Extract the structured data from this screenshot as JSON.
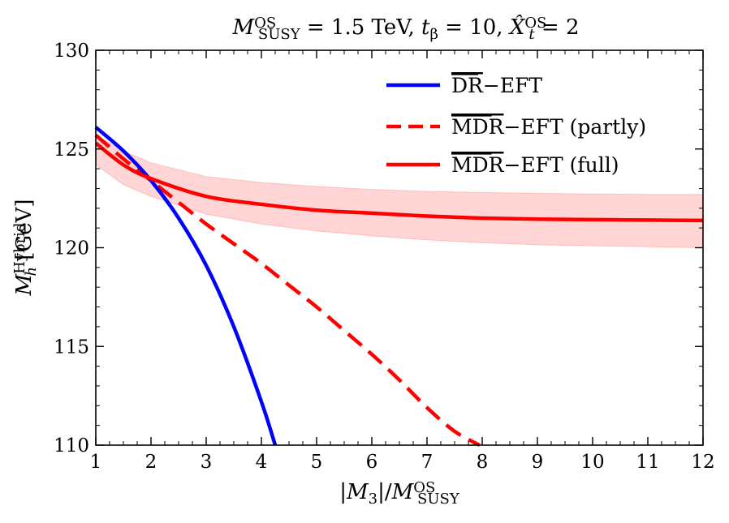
{
  "chart_data": {
    "type": "line",
    "title": {
      "parts": [
        {
          "t": "M",
          "i": true
        },
        {
          "t": "OS",
          "sup": true
        },
        {
          "t": "SUSY",
          "sub": true
        },
        {
          "t": " = 1.5 TeV,  "
        },
        {
          "t": "t",
          "i": true
        },
        {
          "t": "β",
          "sub": true
        },
        {
          "t": " = 10,  "
        },
        {
          "t": "X̂",
          "i": true
        },
        {
          "t": "OS",
          "sup": true
        },
        {
          "t": "t",
          "sub": true,
          "i": true
        },
        {
          "t": " = 2"
        }
      ]
    },
    "xlabel": {
      "parts": [
        {
          "t": "|"
        },
        {
          "t": "M",
          "i": true
        },
        {
          "t": "3",
          "sub": true
        },
        {
          "t": "|/"
        },
        {
          "t": "M",
          "i": true
        },
        {
          "t": "OS",
          "sup": true
        },
        {
          "t": "SUSY",
          "sub": true
        }
      ]
    },
    "ylabel": {
      "parts": [
        {
          "t": "M",
          "i": true
        },
        {
          "t": "Hybrid",
          "sup": true
        },
        {
          "t": "h",
          "sub": true,
          "i": true
        },
        {
          "t": " [GeV]"
        }
      ]
    },
    "xlim": [
      1,
      12
    ],
    "ylim": [
      110,
      130
    ],
    "xticks": [
      1,
      2,
      3,
      4,
      5,
      6,
      7,
      8,
      9,
      10,
      11,
      12
    ],
    "yticks": [
      110,
      115,
      120,
      125,
      130
    ],
    "legend_position": "top-right",
    "series": [
      {
        "name": "DR−EFT",
        "name_overline": "DR",
        "name_rest": "−EFT",
        "color": "#0000ff",
        "style": "solid",
        "x": [
          1.0,
          1.5,
          2.0,
          2.5,
          3.0,
          3.5,
          4.0,
          4.25
        ],
        "y": [
          126.1,
          124.9,
          123.4,
          121.5,
          119.1,
          116.0,
          112.2,
          110.0
        ]
      },
      {
        "name": "MDR−EFT (partly)",
        "name_overline": "MDR",
        "name_rest": "−EFT (partly)",
        "color": "#ff0000",
        "style": "dashed",
        "x": [
          1.0,
          1.5,
          2.0,
          2.5,
          3.0,
          3.5,
          4.0,
          4.5,
          5.0,
          5.5,
          6.0,
          6.5,
          7.0,
          7.5,
          7.95
        ],
        "y": [
          125.7,
          124.5,
          123.4,
          122.3,
          121.2,
          120.2,
          119.2,
          118.1,
          117.0,
          115.8,
          114.6,
          113.3,
          111.9,
          110.7,
          110.0
        ]
      },
      {
        "name": "MDR−EFT (full)",
        "name_overline": "MDR",
        "name_rest": "−EFT (full)",
        "color": "#ff0000",
        "style": "solid",
        "x": [
          1.0,
          1.5,
          2.0,
          3.0,
          4.0,
          5.0,
          6.0,
          7.0,
          8.0,
          9.0,
          10.0,
          11.0,
          12.0
        ],
        "y": [
          125.3,
          124.2,
          123.5,
          122.6,
          122.2,
          121.9,
          121.75,
          121.6,
          121.5,
          121.45,
          121.42,
          121.4,
          121.38
        ],
        "band_upper": [
          125.7,
          124.9,
          124.3,
          123.6,
          123.3,
          123.1,
          122.95,
          122.85,
          122.8,
          122.75,
          122.72,
          122.7,
          122.7
        ],
        "band_lower": [
          124.2,
          123.2,
          122.6,
          121.7,
          121.2,
          120.85,
          120.6,
          120.4,
          120.25,
          120.15,
          120.1,
          120.05,
          120.0
        ],
        "band_color": "#ffb3b3"
      }
    ]
  }
}
